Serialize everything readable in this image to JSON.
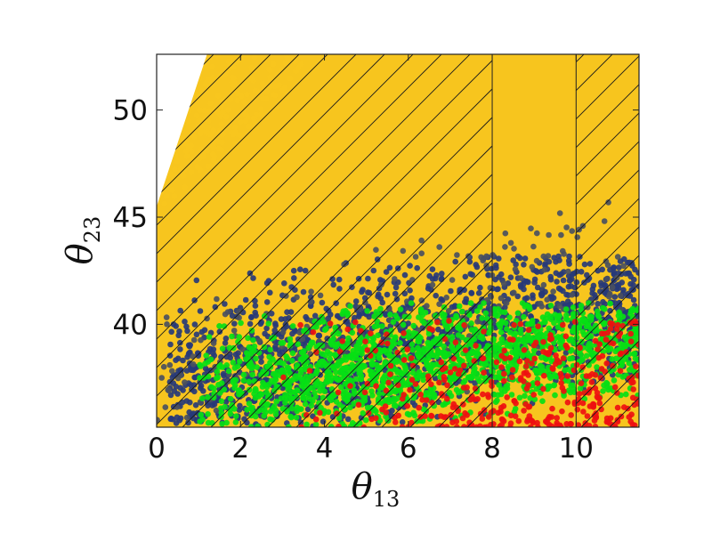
{
  "chart_data": {
    "type": "scatter",
    "title": "",
    "xlabel": {
      "symbol": "θ",
      "subscript": "13"
    },
    "ylabel": {
      "symbol": "θ",
      "subscript": "23"
    },
    "xlim": [
      0,
      11.5
    ],
    "ylim": [
      35.2,
      52.6
    ],
    "xticks": [
      0,
      2,
      4,
      6,
      8,
      10
    ],
    "yticks": [
      40,
      45,
      50
    ],
    "xtick_labels": [
      "0",
      "2",
      "4",
      "6",
      "8",
      "10"
    ],
    "ytick_labels": [
      "40",
      "45",
      "50"
    ],
    "grid": false,
    "legend": "none",
    "background_color": "#f7c51e",
    "hatch": {
      "style": "diagonal",
      "line_color": "#1a1a1a",
      "unhatched_x_ranges": [
        [
          8.0,
          10.0
        ]
      ]
    },
    "unfilled_region": {
      "description_in_data_units": "top-left corner",
      "vertices": [
        [
          0,
          45.5
        ],
        [
          0,
          52.6
        ],
        [
          1.2,
          52.6
        ]
      ]
    },
    "vertical_lines": [
      8.0,
      10.0
    ],
    "series": [
      {
        "color": "#f7c51e",
        "region": {
          "x": [
            0.0,
            3.6
          ],
          "y": [
            45.5,
            52.6
          ],
          "bias": "top-left"
        },
        "count": 260
      },
      {
        "color": "#273a78",
        "region": {
          "x": [
            0.3,
            11.5
          ],
          "y": [
            35.2,
            43.2
          ],
          "bias": "upper-band"
        },
        "count": 1400
      },
      {
        "color": "#4a5060",
        "region": {
          "x": [
            0.0,
            11.5
          ],
          "y": [
            35.5,
            46.0
          ],
          "bias": "sparse-edge"
        },
        "count": 260
      },
      {
        "color": "#06e015",
        "region": {
          "x": [
            1.0,
            11.5
          ],
          "y": [
            35.2,
            41.0
          ],
          "bias": "mid-band"
        },
        "count": 1500
      },
      {
        "color": "#ee1010",
        "region": {
          "x": [
            2.5,
            11.5
          ],
          "y": [
            35.2,
            40.2
          ],
          "bias": "lower-right"
        },
        "count": 380
      }
    ]
  }
}
